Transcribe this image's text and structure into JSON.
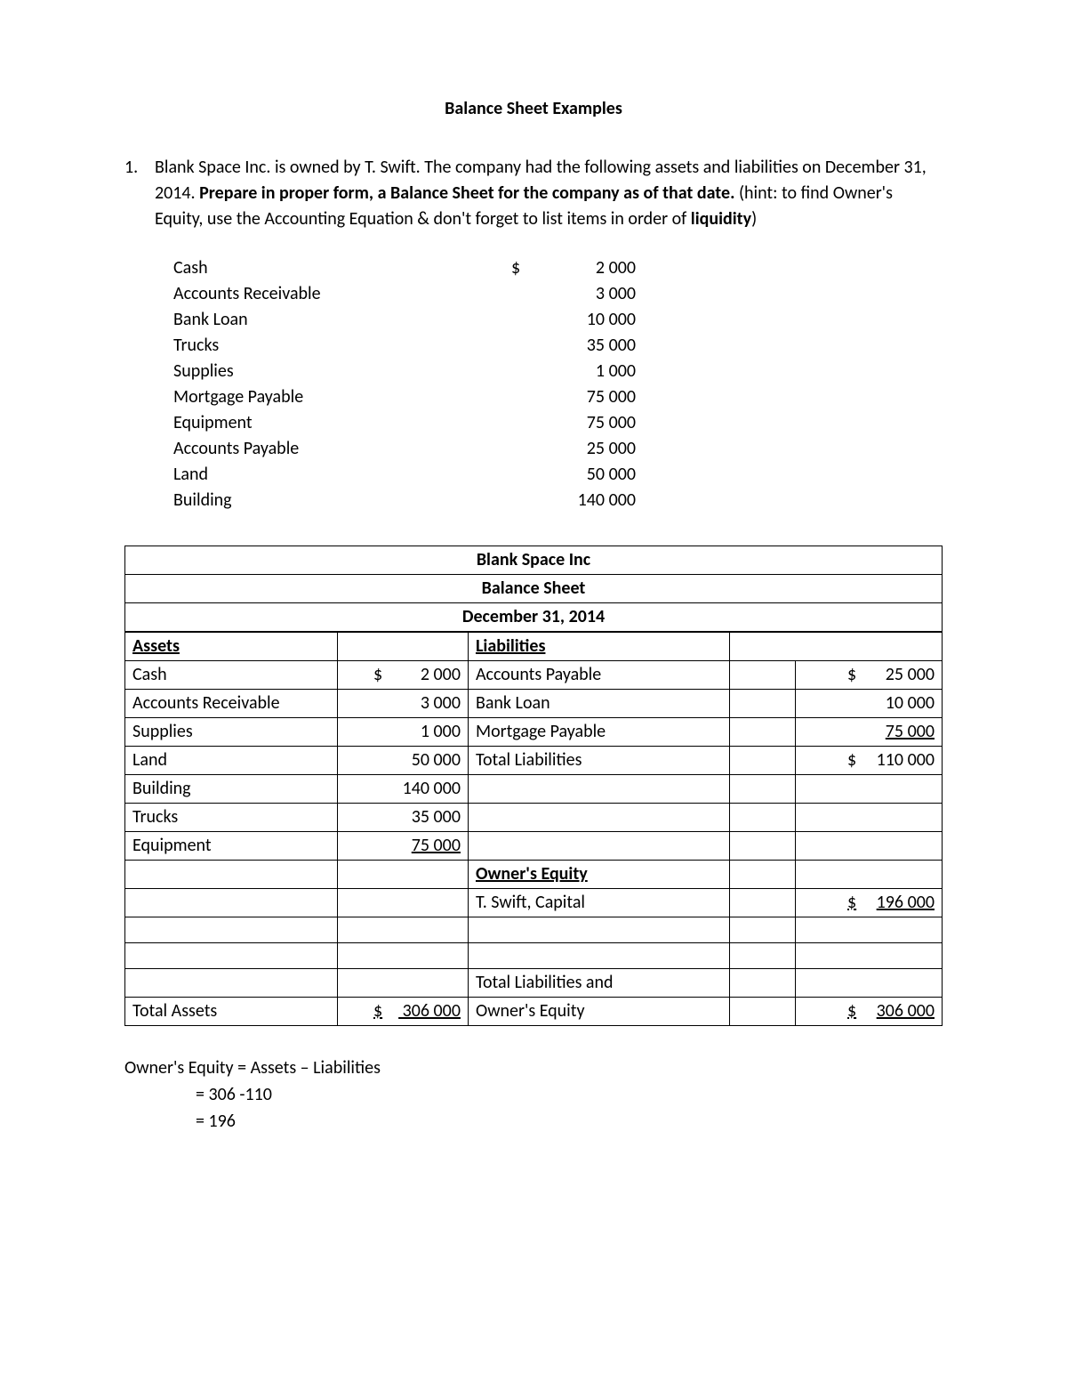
{
  "title": "Balance Sheet Examples",
  "problem": {
    "number": "1.",
    "intro": "Blank Space Inc. is owned by T. Swift.  The company had the following assets and liabilities on December 31, 2014.  ",
    "bold_instruction": "Prepare in proper form, a Balance Sheet for the company as of that date.",
    "hint": " (hint: to find Owner's Equity, use the Accounting Equation & don't forget to list items in order of ",
    "hint_bold": "liquidity",
    "hint_close": ")"
  },
  "given": [
    {
      "label": "Cash",
      "symbol": "$",
      "value": "2 000"
    },
    {
      "label": "Accounts Receivable",
      "symbol": "",
      "value": "3 000"
    },
    {
      "label": "Bank Loan",
      "symbol": "",
      "value": "10 000"
    },
    {
      "label": "Trucks",
      "symbol": "",
      "value": "35 000"
    },
    {
      "label": "Supplies",
      "symbol": "",
      "value": "1 000"
    },
    {
      "label": "Mortgage Payable",
      "symbol": "",
      "value": "75 000"
    },
    {
      "label": "Equipment",
      "symbol": "",
      "value": "75 000"
    },
    {
      "label": "Accounts Payable",
      "symbol": "",
      "value": "25 000"
    },
    {
      "label": "Land",
      "symbol": "",
      "value": "50 000"
    },
    {
      "label": "Building",
      "symbol": "",
      "value": "140 000"
    }
  ],
  "sheet_header": {
    "company": "Blank Space Inc",
    "title": "Balance Sheet",
    "date": "December 31, 2014"
  },
  "assets_header": "Assets",
  "liab_header": "Liabilities",
  "oe_header": "Owner's Equity",
  "assets": [
    {
      "label": "Cash",
      "sym": "$",
      "value": "2 000"
    },
    {
      "label": "Accounts Receivable",
      "sym": "",
      "value": "3 000"
    },
    {
      "label": "Supplies",
      "sym": "",
      "value": "1 000"
    },
    {
      "label": "Land",
      "sym": "",
      "value": "50 000"
    },
    {
      "label": "Building",
      "sym": "",
      "value": "140 000"
    },
    {
      "label": "Trucks",
      "sym": "",
      "value": "35 000"
    },
    {
      "label": "Equipment",
      "sym": "",
      "value": "75 000",
      "underline": true
    }
  ],
  "liabilities": [
    {
      "label": "Accounts Payable",
      "sym": "$",
      "value": "25 000"
    },
    {
      "label": "Bank Loan",
      "sym": "",
      "value": "10 000"
    },
    {
      "label": "Mortgage Payable",
      "sym": "",
      "value": "75 000",
      "underline": true
    }
  ],
  "total_liab": {
    "label": "Total Liabilities",
    "sym": "$",
    "value": "110 000"
  },
  "capital": {
    "label": "T. Swift, Capital",
    "sym": "$",
    "value": "196 000",
    "underline": true,
    "sym_underline": true
  },
  "total_assets": {
    "label": "Total Assets",
    "sym": "$",
    "value": "306 000"
  },
  "total_liab_oe": {
    "label1": "Total Liabilities and",
    "label2": "Owner's Equity",
    "sym": "$",
    "value": "306 000"
  },
  "calc": {
    "line1": "Owner's Equity = Assets – Liabilities",
    "line2": "= 306 -110",
    "line3": "= 196"
  }
}
